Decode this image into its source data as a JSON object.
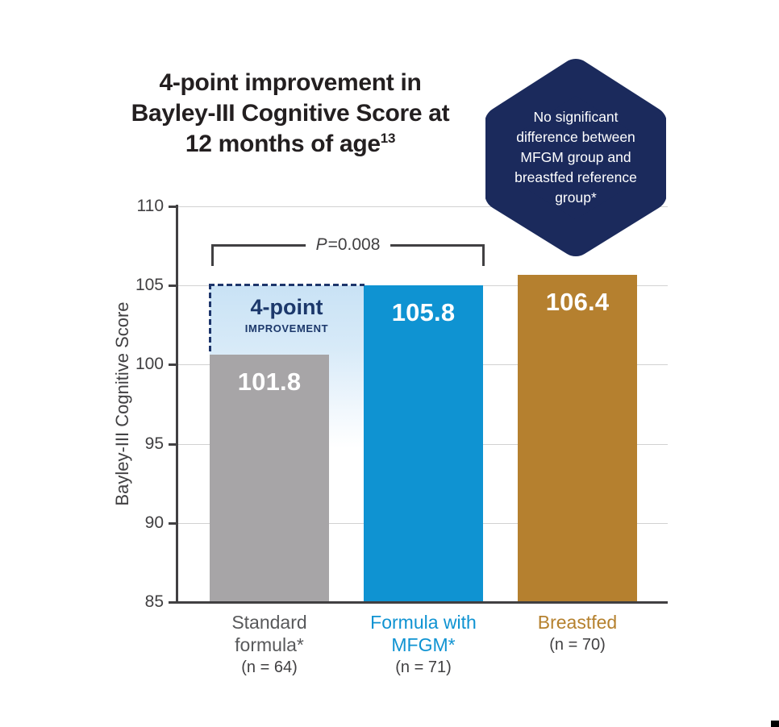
{
  "title": {
    "lines": [
      "4-point improvement in",
      "Bayley-III Cognitive Score at",
      "12 months of age"
    ],
    "superscript": "13"
  },
  "badge": {
    "lines": [
      "No significant",
      "difference between",
      "MFGM group and",
      "breastfed reference",
      "group*"
    ],
    "bg_color": "#1b2a5c",
    "text_color": "#ffffff"
  },
  "chart_data": {
    "type": "bar",
    "title": "4-point improvement in Bayley-III Cognitive Score at 12 months of age",
    "ylabel": "Bayley-III Cognitive Score",
    "ylim": [
      85,
      110
    ],
    "yticks": [
      85,
      90,
      95,
      100,
      105,
      110
    ],
    "grid": true,
    "legend": "none",
    "categories": [
      "Standard formula* (n = 64)",
      "Formula with MFGM* (n = 71)",
      "Breastfed (n = 70)"
    ],
    "values": [
      101.8,
      105.8,
      106.4
    ],
    "bars": [
      {
        "name": "standard-formula",
        "label_lines": [
          "Standard",
          "formula*"
        ],
        "n_label": "(n = 64)",
        "value": 101.8,
        "value_label": "101.8",
        "color": "#a7a5a7",
        "label_color": "#58595b",
        "rendered_top_value": 100.65
      },
      {
        "name": "formula-with-mfgm",
        "label_lines": [
          "Formula with",
          "MFGM*"
        ],
        "n_label": "(n = 71)",
        "value": 105.8,
        "value_label": "105.8",
        "color": "#0f93d2",
        "label_color": "#0f93d2",
        "rendered_top_value": 105.0
      },
      {
        "name": "breastfed",
        "label_lines": [
          "Breastfed"
        ],
        "n_label": "(n = 70)",
        "value": 106.4,
        "value_label": "106.4",
        "color": "#b5802f",
        "label_color": "#b5812e",
        "rendered_top_value": 105.68
      }
    ],
    "annotations": {
      "p_value": {
        "italic": "P",
        "rest": "=0.008"
      },
      "improvement": {
        "headline": "4-point",
        "subline": "IMPROVEMENT",
        "box_top_value": 105.0
      }
    }
  },
  "colors": {
    "badge_navy": "#1b2a5c",
    "improvement_navy": "#1c386b",
    "axis_text": "#414042",
    "gridline": "#d2d2d2",
    "title_text": "#231f20"
  }
}
